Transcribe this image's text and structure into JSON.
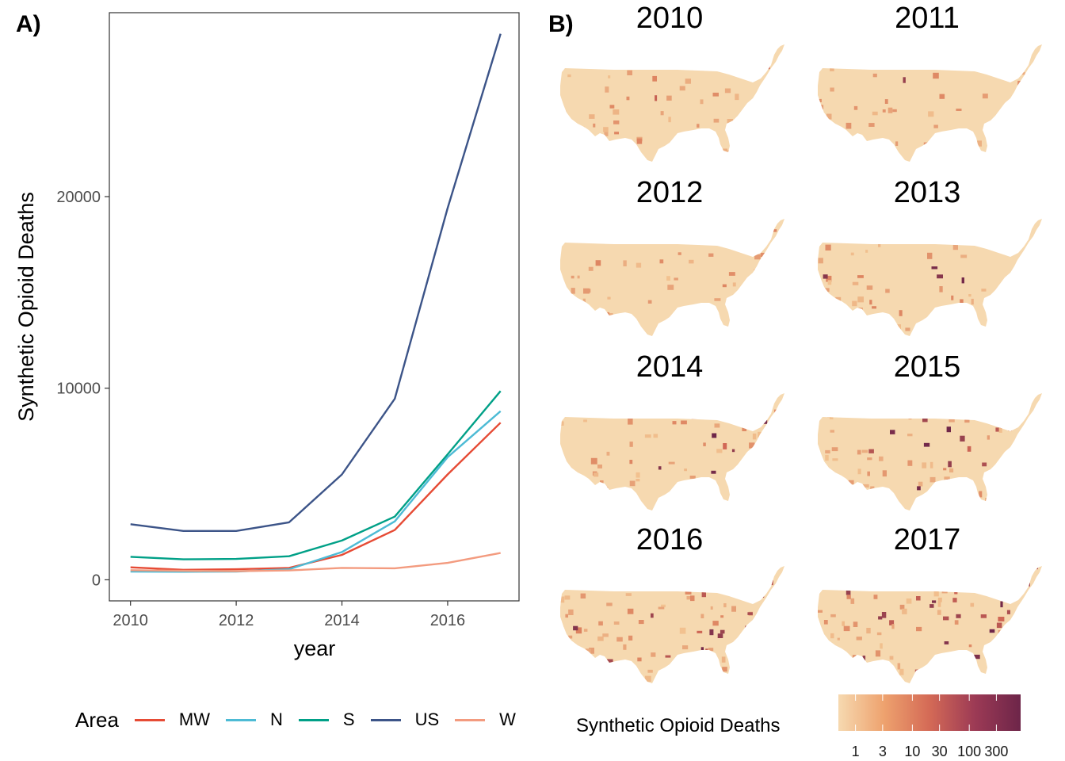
{
  "panel_a_label": "A)",
  "panel_b_label": "B)",
  "chart_data": [
    {
      "type": "line",
      "title": "",
      "xlabel": "year",
      "ylabel": "Synthetic Opioid Deaths",
      "x": [
        2010,
        2011,
        2012,
        2013,
        2014,
        2015,
        2016,
        2017
      ],
      "x_ticks": [
        "2010",
        "2012",
        "2014",
        "2016"
      ],
      "y_ticks": [
        "0",
        "10000",
        "20000"
      ],
      "xlim": [
        2009.6,
        2017.35
      ],
      "ylim": [
        -1100,
        29600
      ],
      "grid": false,
      "series": [
        {
          "name": "MW",
          "color": "#e64b35",
          "values": [
            650,
            520,
            550,
            620,
            1300,
            2600,
            5500,
            8200
          ]
        },
        {
          "name": "N",
          "color": "#4dbbd5",
          "values": [
            430,
            420,
            430,
            550,
            1450,
            3050,
            6400,
            8800
          ]
        },
        {
          "name": "S",
          "color": "#00a087",
          "values": [
            1200,
            1070,
            1090,
            1230,
            2050,
            3300,
            6550,
            9850
          ]
        },
        {
          "name": "US",
          "color": "#3c5488",
          "values": [
            2900,
            2550,
            2550,
            3000,
            5500,
            9450,
            19400,
            28500
          ]
        },
        {
          "name": "W",
          "color": "#f39b7f",
          "values": [
            500,
            470,
            450,
            490,
            620,
            600,
            880,
            1400
          ]
        }
      ],
      "legend": {
        "title": "Area",
        "position": "bottom"
      }
    },
    {
      "type": "heatmap",
      "subtype": "choropleth-map",
      "panels": [
        "2010",
        "2011",
        "2012",
        "2013",
        "2014",
        "2015",
        "2016",
        "2017"
      ],
      "panel_intensity": [
        0.15,
        0.15,
        0.2,
        0.25,
        0.45,
        0.6,
        0.8,
        0.95
      ],
      "colorbar": {
        "title": "Synthetic Opioid Deaths",
        "scale": "log",
        "ticks": [
          "1",
          "3",
          "10",
          "30",
          "100",
          "300"
        ],
        "tick_values": [
          1,
          3,
          10,
          30,
          100,
          300
        ],
        "range": [
          0.5,
          800
        ],
        "colors": [
          "#f6d9b0",
          "#eea26e",
          "#d46a56",
          "#9c3a55",
          "#6d2549"
        ]
      }
    }
  ]
}
